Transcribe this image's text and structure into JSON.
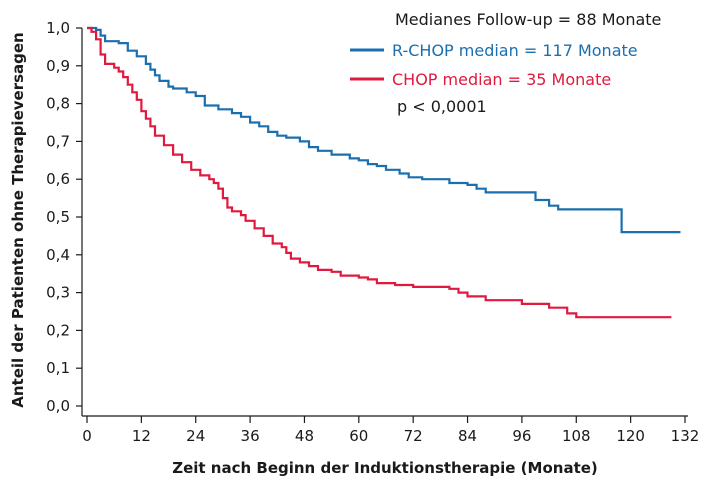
{
  "chart_data": {
    "type": "line",
    "xlabel": "Zeit nach Beginn der Induktionstherapie (Monate)",
    "ylabel": "Anteil der Patienten ohne Therapieversagen",
    "xlim": [
      0,
      132
    ],
    "ylim": [
      0,
      1.0
    ],
    "x_ticks": [
      "0",
      "12",
      "24",
      "36",
      "48",
      "60",
      "72",
      "84",
      "96",
      "108",
      "120",
      "132"
    ],
    "y_ticks": [
      "0,0",
      "0,1",
      "0,2",
      "0,3",
      "0,4",
      "0,5",
      "0,6",
      "0,7",
      "0,8",
      "0,9",
      "1,0"
    ],
    "grid": false,
    "annotations": {
      "follow_up": "Medianes Follow-up = 88 Monate",
      "p_value": "p < 0,0001"
    },
    "series": [
      {
        "name": "R-CHOP median = 117 Monate",
        "color": "#1b6fae",
        "points": [
          [
            0,
            1.0
          ],
          [
            2,
            0.995
          ],
          [
            3,
            0.98
          ],
          [
            4,
            0.965
          ],
          [
            7,
            0.96
          ],
          [
            9,
            0.94
          ],
          [
            11,
            0.925
          ],
          [
            13,
            0.905
          ],
          [
            14,
            0.89
          ],
          [
            15,
            0.875
          ],
          [
            16,
            0.86
          ],
          [
            18,
            0.845
          ],
          [
            19,
            0.84
          ],
          [
            22,
            0.83
          ],
          [
            24,
            0.82
          ],
          [
            26,
            0.795
          ],
          [
            29,
            0.785
          ],
          [
            32,
            0.775
          ],
          [
            34,
            0.765
          ],
          [
            36,
            0.75
          ],
          [
            38,
            0.74
          ],
          [
            40,
            0.725
          ],
          [
            42,
            0.715
          ],
          [
            44,
            0.71
          ],
          [
            47,
            0.7
          ],
          [
            49,
            0.685
          ],
          [
            51,
            0.675
          ],
          [
            54,
            0.665
          ],
          [
            58,
            0.655
          ],
          [
            60,
            0.65
          ],
          [
            62,
            0.64
          ],
          [
            64,
            0.635
          ],
          [
            66,
            0.625
          ],
          [
            69,
            0.615
          ],
          [
            71,
            0.605
          ],
          [
            74,
            0.6
          ],
          [
            80,
            0.59
          ],
          [
            84,
            0.585
          ],
          [
            86,
            0.575
          ],
          [
            88,
            0.565
          ],
          [
            99,
            0.545
          ],
          [
            102,
            0.53
          ],
          [
            104,
            0.52
          ],
          [
            118,
            0.46
          ],
          [
            131,
            0.46
          ]
        ]
      },
      {
        "name": "CHOP median = 35 Monate",
        "color": "#e0193f",
        "points": [
          [
            0,
            1.0
          ],
          [
            1,
            0.99
          ],
          [
            2,
            0.97
          ],
          [
            3,
            0.93
          ],
          [
            4,
            0.905
          ],
          [
            6,
            0.895
          ],
          [
            7,
            0.885
          ],
          [
            8,
            0.87
          ],
          [
            9,
            0.85
          ],
          [
            10,
            0.83
          ],
          [
            11,
            0.81
          ],
          [
            12,
            0.78
          ],
          [
            13,
            0.76
          ],
          [
            14,
            0.74
          ],
          [
            15,
            0.715
          ],
          [
            17,
            0.69
          ],
          [
            19,
            0.665
          ],
          [
            21,
            0.645
          ],
          [
            23,
            0.625
          ],
          [
            25,
            0.61
          ],
          [
            27,
            0.6
          ],
          [
            28,
            0.59
          ],
          [
            29,
            0.575
          ],
          [
            30,
            0.55
          ],
          [
            31,
            0.525
          ],
          [
            32,
            0.515
          ],
          [
            34,
            0.505
          ],
          [
            35,
            0.49
          ],
          [
            37,
            0.47
          ],
          [
            39,
            0.45
          ],
          [
            41,
            0.43
          ],
          [
            43,
            0.42
          ],
          [
            44,
            0.405
          ],
          [
            45,
            0.39
          ],
          [
            47,
            0.38
          ],
          [
            49,
            0.37
          ],
          [
            51,
            0.36
          ],
          [
            54,
            0.355
          ],
          [
            56,
            0.345
          ],
          [
            60,
            0.34
          ],
          [
            62,
            0.335
          ],
          [
            64,
            0.325
          ],
          [
            66,
            0.325
          ],
          [
            68,
            0.32
          ],
          [
            72,
            0.315
          ],
          [
            80,
            0.31
          ],
          [
            82,
            0.3
          ],
          [
            84,
            0.29
          ],
          [
            88,
            0.28
          ],
          [
            92,
            0.28
          ],
          [
            96,
            0.27
          ],
          [
            102,
            0.26
          ],
          [
            106,
            0.245
          ],
          [
            108,
            0.235
          ],
          [
            126,
            0.235
          ],
          [
            129,
            0.235
          ]
        ]
      }
    ]
  }
}
